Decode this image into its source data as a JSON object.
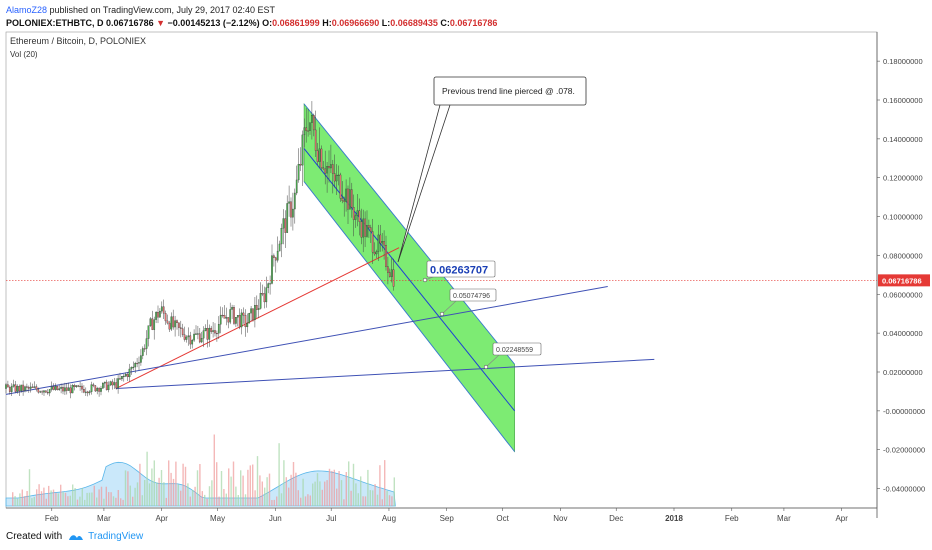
{
  "header": {
    "author": "AlamoZ28",
    "published": " published on TradingView.com, July 29, 2017 02:40 EST"
  },
  "quote": {
    "symbol": "POLONIEX:ETHBTC, D",
    "last": "0.06716786",
    "arrow": "▼",
    "change": "−0.00145213 (−2.12%)",
    "o_label": "O:",
    "o": "0.06861999",
    "h_label": "H:",
    "h": "0.06966690",
    "l_label": "L:",
    "l": "0.06689435",
    "c_label": "C:",
    "c": "0.06716786"
  },
  "chart_data": {
    "type": "candlestick",
    "title": "Ethereum / Bitcoin, D, POLONIEX",
    "indicator": "Vol (20)",
    "x_ticks": [
      "Feb",
      "Mar",
      "Apr",
      "May",
      "Jun",
      "Jul",
      "Aug",
      "Sep",
      "Oct",
      "Nov",
      "Dec",
      "2018",
      "Feb",
      "Mar",
      "Apr"
    ],
    "y_ticks": [
      "0.18000000",
      "0.16000000",
      "0.14000000",
      "0.12000000",
      "0.10000000",
      "0.08000000",
      "0.06000000",
      "0.04000000",
      "0.02000000",
      "-0.00000000",
      "-0.02000000",
      "-0.04000000"
    ],
    "ylim": [
      -0.05,
      0.195
    ],
    "price_path": [
      [
        "2017-01-01",
        0.0115
      ],
      [
        "2017-01-15",
        0.0112
      ],
      [
        "2017-02-01",
        0.0108
      ],
      [
        "2017-02-15",
        0.0115
      ],
      [
        "2017-03-01",
        0.0135
      ],
      [
        "2017-03-10",
        0.022
      ],
      [
        "2017-03-15",
        0.03
      ],
      [
        "2017-03-20",
        0.045
      ],
      [
        "2017-03-25",
        0.052
      ],
      [
        "2017-04-01",
        0.043
      ],
      [
        "2017-04-10",
        0.038
      ],
      [
        "2017-04-20",
        0.04
      ],
      [
        "2017-05-01",
        0.05
      ],
      [
        "2017-05-10",
        0.045
      ],
      [
        "2017-05-20",
        0.06
      ],
      [
        "2017-05-25",
        0.08
      ],
      [
        "2017-05-30",
        0.095
      ],
      [
        "2017-06-05",
        0.11
      ],
      [
        "2017-06-12",
        0.152
      ],
      [
        "2017-06-18",
        0.135
      ],
      [
        "2017-06-25",
        0.12
      ],
      [
        "2017-07-01",
        0.115
      ],
      [
        "2017-07-08",
        0.1
      ],
      [
        "2017-07-15",
        0.09
      ],
      [
        "2017-07-22",
        0.082
      ],
      [
        "2017-07-29",
        0.0672
      ]
    ],
    "last_price": 0.06716786,
    "last_price_label": "0.06716786",
    "annotations": [
      {
        "type": "callout",
        "text": "Previous trend line pierced @ .078."
      },
      {
        "type": "price_label",
        "text": "0.06263707",
        "value": 0.06263707
      },
      {
        "type": "price_label",
        "text": "0.05074796",
        "value": 0.05074796
      },
      {
        "type": "price_label",
        "text": "0.02248559",
        "value": 0.02248559
      }
    ],
    "trend_lines": [
      {
        "color": "#e53935",
        "from": [
          "2017-03-01",
          0.0115
        ],
        "to": [
          "2017-07-31",
          0.084
        ]
      },
      {
        "color": "#3f51b5",
        "from": [
          "2017-01-01",
          0.0085
        ],
        "to": [
          "2017-11-20",
          0.064
        ]
      },
      {
        "color": "#3f51b5",
        "from": [
          "2017-03-01",
          0.0115
        ],
        "to": [
          "2017-12-15",
          0.0265
        ]
      }
    ],
    "channel": {
      "fill": "#66e85a",
      "upper": {
        "from": [
          "2017-06-10",
          0.158
        ],
        "to": [
          "2017-10-01",
          0.024
        ]
      },
      "lower": {
        "from": [
          "2017-06-10",
          0.118
        ],
        "to": [
          "2017-10-01",
          -0.021
        ]
      },
      "mid": {
        "from": [
          "2017-06-10",
          0.135
        ],
        "to": [
          "2017-10-01",
          0.0
        ]
      }
    }
  },
  "footer": {
    "created": "Created with",
    "brand": "TradingView"
  }
}
